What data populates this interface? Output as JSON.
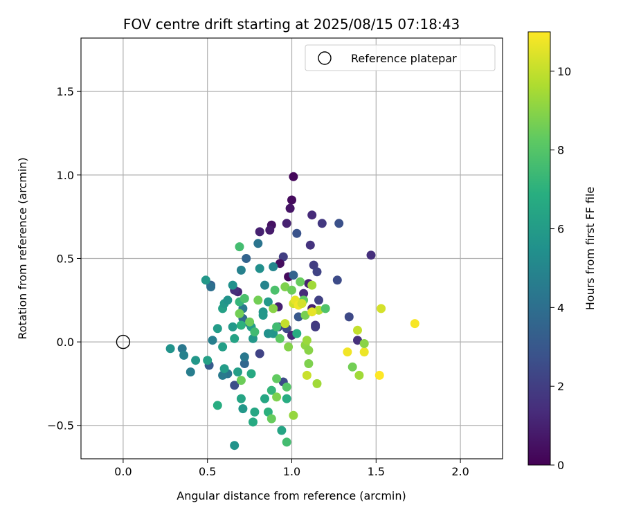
{
  "chart_data": {
    "type": "scatter",
    "title": "FOV centre drift starting at 2025/08/15 07:18:43",
    "xlabel": "Angular distance from reference (arcmin)",
    "ylabel": "Rotation from reference (arcmin)",
    "xlim": [
      -0.25,
      2.25
    ],
    "ylim": [
      -0.7,
      1.82
    ],
    "xticks": [
      0.0,
      0.5,
      1.0,
      1.5,
      2.0
    ],
    "xtick_labels": [
      "0.0",
      "0.5",
      "1.0",
      "1.5",
      "2.0"
    ],
    "yticks": [
      -0.5,
      0.0,
      0.5,
      1.0,
      1.5
    ],
    "ytick_labels": [
      "−0.5",
      "0.0",
      "0.5",
      "1.0",
      "1.5"
    ],
    "grid": true,
    "legend": {
      "placement": "upper right",
      "entries": [
        "Reference platepar"
      ]
    },
    "reference_point": {
      "label": "Reference platepar",
      "x": 0.0,
      "y": 0.0,
      "marker": "hollow-circle"
    },
    "colorbar": {
      "label": "Hours from first FF file",
      "colormap": "viridis",
      "range": [
        0,
        11
      ],
      "ticks": [
        0,
        2,
        4,
        6,
        8,
        10
      ],
      "tick_labels": [
        "0",
        "2",
        "4",
        "6",
        "8",
        "10"
      ]
    },
    "points": [
      {
        "x": 1.01,
        "y": 0.99,
        "h": 0.2
      },
      {
        "x": 1.0,
        "y": 0.85,
        "h": 0.3
      },
      {
        "x": 0.99,
        "y": 0.8,
        "h": 0.6
      },
      {
        "x": 0.97,
        "y": 0.71,
        "h": 1.0
      },
      {
        "x": 0.88,
        "y": 0.7,
        "h": 0.5
      },
      {
        "x": 0.87,
        "y": 0.67,
        "h": 0.8
      },
      {
        "x": 0.81,
        "y": 0.66,
        "h": 1.0
      },
      {
        "x": 1.12,
        "y": 0.76,
        "h": 1.3
      },
      {
        "x": 1.18,
        "y": 0.71,
        "h": 1.8
      },
      {
        "x": 1.28,
        "y": 0.71,
        "h": 2.7
      },
      {
        "x": 1.03,
        "y": 0.65,
        "h": 2.8
      },
      {
        "x": 1.47,
        "y": 0.52,
        "h": 1.5
      },
      {
        "x": 1.11,
        "y": 0.58,
        "h": 1.6
      },
      {
        "x": 0.95,
        "y": 0.51,
        "h": 2.0
      },
      {
        "x": 0.93,
        "y": 0.47,
        "h": 0.4
      },
      {
        "x": 1.13,
        "y": 0.46,
        "h": 2.0
      },
      {
        "x": 1.15,
        "y": 0.42,
        "h": 2.2
      },
      {
        "x": 0.98,
        "y": 0.39,
        "h": 0.3
      },
      {
        "x": 1.01,
        "y": 0.4,
        "h": 3.5
      },
      {
        "x": 1.27,
        "y": 0.37,
        "h": 2.5
      },
      {
        "x": 1.1,
        "y": 0.35,
        "h": 1.0
      },
      {
        "x": 1.07,
        "y": 0.29,
        "h": 1.3
      },
      {
        "x": 1.16,
        "y": 0.25,
        "h": 2.1
      },
      {
        "x": 1.12,
        "y": 0.2,
        "h": 1.0
      },
      {
        "x": 1.04,
        "y": 0.15,
        "h": 3.0
      },
      {
        "x": 1.34,
        "y": 0.15,
        "h": 2.4
      },
      {
        "x": 1.14,
        "y": 0.1,
        "h": 1.7
      },
      {
        "x": 1.14,
        "y": 0.09,
        "h": 1.9
      },
      {
        "x": 0.97,
        "y": 0.08,
        "h": 2.4
      },
      {
        "x": 1.0,
        "y": 0.04,
        "h": 1.2
      },
      {
        "x": 0.92,
        "y": 0.09,
        "h": 2.2
      },
      {
        "x": 0.92,
        "y": 0.21,
        "h": 1.0
      },
      {
        "x": 0.68,
        "y": 0.3,
        "h": 1.2
      },
      {
        "x": 0.66,
        "y": 0.31,
        "h": 1.5
      },
      {
        "x": 1.39,
        "y": 0.01,
        "h": 1.5
      },
      {
        "x": 0.81,
        "y": -0.07,
        "h": 2.2
      },
      {
        "x": 0.95,
        "y": -0.24,
        "h": 2.5
      },
      {
        "x": 0.66,
        "y": -0.26,
        "h": 2.6
      },
      {
        "x": 0.52,
        "y": 0.34,
        "h": 3.3
      },
      {
        "x": 0.73,
        "y": 0.5,
        "h": 3.5
      },
      {
        "x": 0.8,
        "y": 0.59,
        "h": 4.2
      },
      {
        "x": 0.7,
        "y": 0.43,
        "h": 4.8
      },
      {
        "x": 0.81,
        "y": 0.44,
        "h": 5.4
      },
      {
        "x": 0.89,
        "y": 0.45,
        "h": 5.0
      },
      {
        "x": 0.84,
        "y": 0.34,
        "h": 4.9
      },
      {
        "x": 0.52,
        "y": 0.33,
        "h": 4.0
      },
      {
        "x": 0.75,
        "y": 0.11,
        "h": 3.6
      },
      {
        "x": 0.71,
        "y": 0.2,
        "h": 4.5
      },
      {
        "x": 0.71,
        "y": 0.14,
        "h": 3.8
      },
      {
        "x": 0.72,
        "y": -0.13,
        "h": 3.7
      },
      {
        "x": 0.72,
        "y": -0.09,
        "h": 4.4
      },
      {
        "x": 0.62,
        "y": -0.19,
        "h": 4.2
      },
      {
        "x": 0.59,
        "y": -0.2,
        "h": 4.5
      },
      {
        "x": 0.51,
        "y": -0.14,
        "h": 3.2
      },
      {
        "x": 0.53,
        "y": 0.01,
        "h": 4.7
      },
      {
        "x": 0.4,
        "y": -0.18,
        "h": 4.6
      },
      {
        "x": 0.35,
        "y": -0.04,
        "h": 4.4
      },
      {
        "x": 0.36,
        "y": -0.08,
        "h": 4.8
      },
      {
        "x": 0.28,
        "y": -0.04,
        "h": 5.6
      },
      {
        "x": 0.43,
        "y": -0.11,
        "h": 5.8
      },
      {
        "x": 0.5,
        "y": -0.11,
        "h": 6.2
      },
      {
        "x": 0.49,
        "y": 0.37,
        "h": 5.8
      },
      {
        "x": 0.56,
        "y": 0.08,
        "h": 6.0
      },
      {
        "x": 0.59,
        "y": 0.2,
        "h": 6.2
      },
      {
        "x": 0.6,
        "y": 0.23,
        "h": 5.9
      },
      {
        "x": 0.65,
        "y": 0.34,
        "h": 5.5
      },
      {
        "x": 0.62,
        "y": 0.25,
        "h": 5.6
      },
      {
        "x": 0.65,
        "y": 0.09,
        "h": 5.9
      },
      {
        "x": 0.68,
        "y": -0.18,
        "h": 6.1
      },
      {
        "x": 0.6,
        "y": -0.16,
        "h": 6.0
      },
      {
        "x": 0.59,
        "y": -0.03,
        "h": 6.1
      },
      {
        "x": 0.66,
        "y": 0.02,
        "h": 6.3
      },
      {
        "x": 0.7,
        "y": -0.34,
        "h": 6.4
      },
      {
        "x": 0.71,
        "y": -0.4,
        "h": 5.8
      },
      {
        "x": 0.56,
        "y": -0.38,
        "h": 6.8
      },
      {
        "x": 0.66,
        "y": -0.62,
        "h": 5.6
      },
      {
        "x": 0.78,
        "y": -0.42,
        "h": 6.5
      },
      {
        "x": 0.77,
        "y": -0.48,
        "h": 6.7
      },
      {
        "x": 0.76,
        "y": -0.19,
        "h": 6.6
      },
      {
        "x": 0.77,
        "y": 0.02,
        "h": 5.8
      },
      {
        "x": 0.76,
        "y": 0.09,
        "h": 6.0
      },
      {
        "x": 0.83,
        "y": 0.18,
        "h": 5.7
      },
      {
        "x": 0.83,
        "y": 0.16,
        "h": 5.8
      },
      {
        "x": 0.86,
        "y": 0.24,
        "h": 5.9
      },
      {
        "x": 0.86,
        "y": 0.05,
        "h": 5.5
      },
      {
        "x": 0.89,
        "y": 0.05,
        "h": 5.7
      },
      {
        "x": 0.84,
        "y": -0.34,
        "h": 6.5
      },
      {
        "x": 0.86,
        "y": -0.42,
        "h": 7.0
      },
      {
        "x": 0.88,
        "y": -0.29,
        "h": 7.2
      },
      {
        "x": 0.94,
        "y": -0.53,
        "h": 6.4
      },
      {
        "x": 0.97,
        "y": -0.34,
        "h": 6.8
      },
      {
        "x": 0.97,
        "y": -0.6,
        "h": 7.6
      },
      {
        "x": 0.88,
        "y": -0.46,
        "h": 8.4
      },
      {
        "x": 0.91,
        "y": -0.33,
        "h": 8.8
      },
      {
        "x": 0.91,
        "y": -0.22,
        "h": 8.3
      },
      {
        "x": 0.97,
        "y": -0.27,
        "h": 8.0
      },
      {
        "x": 0.69,
        "y": 0.57,
        "h": 7.6
      },
      {
        "x": 0.69,
        "y": 0.24,
        "h": 7.2
      },
      {
        "x": 0.7,
        "y": 0.1,
        "h": 7.0
      },
      {
        "x": 0.72,
        "y": 0.26,
        "h": 7.8
      },
      {
        "x": 0.75,
        "y": 0.12,
        "h": 8.5
      },
      {
        "x": 0.78,
        "y": 0.06,
        "h": 7.5
      },
      {
        "x": 0.69,
        "y": 0.17,
        "h": 8.6
      },
      {
        "x": 0.7,
        "y": -0.23,
        "h": 8.5
      },
      {
        "x": 0.8,
        "y": 0.25,
        "h": 8.6
      },
      {
        "x": 0.89,
        "y": 0.2,
        "h": 9.0
      },
      {
        "x": 0.9,
        "y": 0.31,
        "h": 7.8
      },
      {
        "x": 0.91,
        "y": 0.09,
        "h": 7.5
      },
      {
        "x": 0.93,
        "y": 0.02,
        "h": 8.2
      },
      {
        "x": 0.96,
        "y": 0.33,
        "h": 8.8
      },
      {
        "x": 0.98,
        "y": -0.03,
        "h": 8.9
      },
      {
        "x": 1.0,
        "y": 0.31,
        "h": 8.5
      },
      {
        "x": 1.03,
        "y": 0.05,
        "h": 6.8
      },
      {
        "x": 1.05,
        "y": 0.36,
        "h": 8.4
      },
      {
        "x": 1.07,
        "y": 0.25,
        "h": 8.3
      },
      {
        "x": 1.08,
        "y": 0.16,
        "h": 8.7
      },
      {
        "x": 1.08,
        "y": -0.02,
        "h": 9.1
      },
      {
        "x": 1.09,
        "y": 0.01,
        "h": 9.3
      },
      {
        "x": 1.1,
        "y": -0.05,
        "h": 9.0
      },
      {
        "x": 1.1,
        "y": -0.13,
        "h": 8.8
      },
      {
        "x": 1.12,
        "y": 0.34,
        "h": 9.4
      },
      {
        "x": 1.16,
        "y": 0.19,
        "h": 9.8
      },
      {
        "x": 1.15,
        "y": -0.25,
        "h": 9.4
      },
      {
        "x": 1.09,
        "y": -0.2,
        "h": 10.1
      },
      {
        "x": 1.01,
        "y": -0.44,
        "h": 9.2
      },
      {
        "x": 0.96,
        "y": 0.11,
        "h": 10.0
      },
      {
        "x": 1.01,
        "y": 0.23,
        "h": 10.2
      },
      {
        "x": 1.02,
        "y": 0.25,
        "h": 10.6
      },
      {
        "x": 1.04,
        "y": 0.22,
        "h": 10.8
      },
      {
        "x": 1.06,
        "y": 0.23,
        "h": 10.3
      },
      {
        "x": 1.12,
        "y": 0.18,
        "h": 10.6
      },
      {
        "x": 1.2,
        "y": 0.2,
        "h": 7.9
      },
      {
        "x": 1.33,
        "y": -0.06,
        "h": 10.8
      },
      {
        "x": 1.36,
        "y": -0.15,
        "h": 8.6
      },
      {
        "x": 1.39,
        "y": 0.07,
        "h": 10.0
      },
      {
        "x": 1.4,
        "y": -0.2,
        "h": 9.4
      },
      {
        "x": 1.43,
        "y": -0.06,
        "h": 10.7
      },
      {
        "x": 1.43,
        "y": -0.01,
        "h": 9.0
      },
      {
        "x": 1.52,
        "y": -0.2,
        "h": 11.0
      },
      {
        "x": 1.53,
        "y": 0.2,
        "h": 10.3
      },
      {
        "x": 1.73,
        "y": 0.11,
        "h": 10.9
      }
    ]
  }
}
